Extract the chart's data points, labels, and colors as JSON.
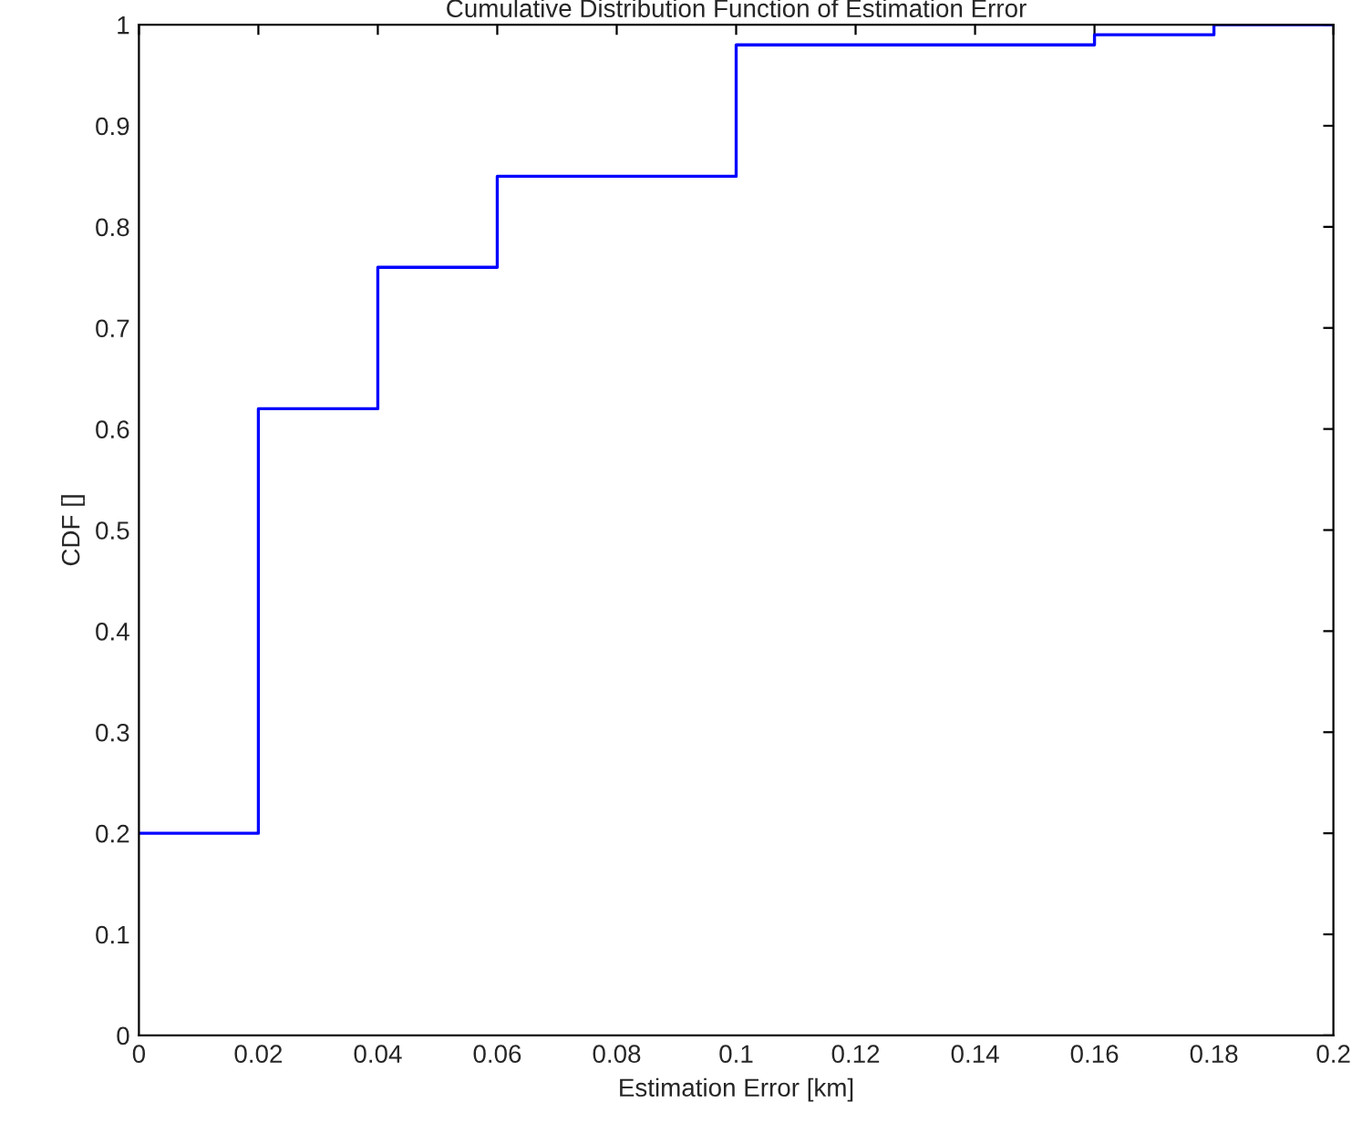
{
  "chart_data": {
    "type": "step",
    "title": "Cumulative Distribution Function of Estimation Error",
    "xlabel": "Estimation Error [km]",
    "ylabel": "CDF []",
    "x": [
      0,
      0.02,
      0.04,
      0.06,
      0.1,
      0.16,
      0.18,
      0.2
    ],
    "series": [
      {
        "color": "#0000ff",
        "values": [
          0.2,
          0.62,
          0.76,
          0.85,
          0.98,
          0.99,
          1,
          1
        ]
      }
    ],
    "xlim": [
      0,
      0.2
    ],
    "xticks": [
      0,
      0.02,
      0.04,
      0.06,
      0.08,
      0.1,
      0.12,
      0.14,
      0.16,
      0.18,
      0.2
    ],
    "ylim": [
      0,
      1
    ],
    "yticks": [
      0,
      0.1,
      0.2,
      0.3,
      0.4,
      0.5,
      0.6,
      0.7,
      0.8,
      0.9,
      1
    ],
    "grid": false,
    "legend": false
  }
}
